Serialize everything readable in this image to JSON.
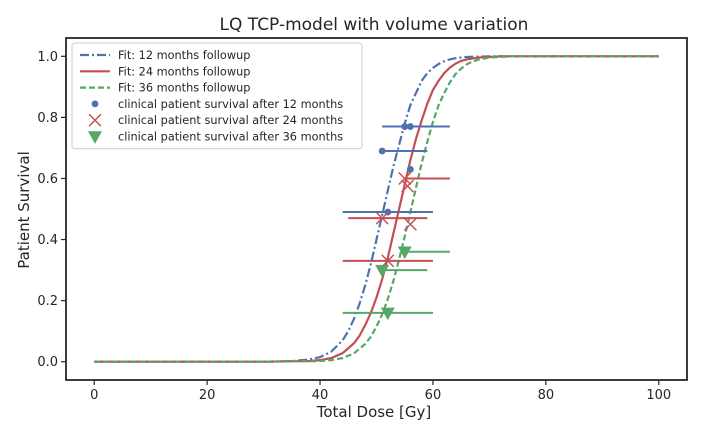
{
  "chart_data": {
    "type": "line",
    "title": "LQ TCP-model with volume variation",
    "xlabel": "Total Dose [Gy]",
    "ylabel": "Patient Survival",
    "xlim": [
      -5,
      105
    ],
    "ylim": [
      -0.06,
      1.06
    ],
    "xticks": [
      0,
      20,
      40,
      60,
      80,
      100
    ],
    "yticks": [
      0.0,
      0.2,
      0.4,
      0.6,
      0.8,
      1.0
    ],
    "xtick_labels": [
      "0",
      "20",
      "40",
      "60",
      "80",
      "100"
    ],
    "ytick_labels": [
      "0.0",
      "0.2",
      "0.4",
      "0.6",
      "0.8",
      "1.0"
    ],
    "legend_position": "top-left",
    "series": [
      {
        "name": "Fit: 12 months followup",
        "kind": "fit",
        "color": "#4c72b0",
        "linestyle": "dashdot",
        "x": [
          0,
          10,
          20,
          30,
          35,
          38,
          40,
          42,
          44,
          45,
          46,
          47,
          48,
          49,
          50,
          51,
          52,
          53,
          54,
          55,
          56,
          57,
          58,
          59,
          60,
          61,
          62,
          63,
          64,
          66,
          68,
          70,
          80,
          90,
          100
        ],
        "y": [
          0.0,
          0.0,
          0.0,
          0.0,
          0.002,
          0.007,
          0.015,
          0.033,
          0.07,
          0.1,
          0.14,
          0.19,
          0.25,
          0.32,
          0.4,
          0.48,
          0.56,
          0.64,
          0.71,
          0.78,
          0.84,
          0.88,
          0.92,
          0.945,
          0.962,
          0.975,
          0.984,
          0.99,
          0.994,
          0.998,
          0.999,
          1.0,
          1.0,
          1.0,
          1.0
        ]
      },
      {
        "name": "Fit: 24 months followup",
        "kind": "fit",
        "color": "#c44e52",
        "linestyle": "solid",
        "x": [
          0,
          10,
          20,
          30,
          38,
          40,
          42,
          44,
          46,
          47,
          48,
          49,
          50,
          51,
          52,
          53,
          54,
          55,
          56,
          57,
          58,
          59,
          60,
          61,
          62,
          63,
          64,
          65,
          66,
          68,
          70,
          72,
          80,
          90,
          100
        ],
        "y": [
          0.0,
          0.0,
          0.0,
          0.0,
          0.002,
          0.005,
          0.012,
          0.028,
          0.06,
          0.085,
          0.12,
          0.16,
          0.21,
          0.27,
          0.34,
          0.42,
          0.5,
          0.58,
          0.66,
          0.73,
          0.79,
          0.845,
          0.89,
          0.92,
          0.945,
          0.963,
          0.976,
          0.985,
          0.99,
          0.996,
          0.998,
          1.0,
          1.0,
          1.0,
          1.0
        ]
      },
      {
        "name": "Fit: 36 months followup",
        "kind": "fit",
        "color": "#55a868",
        "linestyle": "dashed",
        "x": [
          0,
          10,
          20,
          30,
          40,
          42,
          44,
          46,
          48,
          49,
          50,
          51,
          52,
          53,
          54,
          55,
          56,
          57,
          58,
          59,
          60,
          61,
          62,
          63,
          64,
          65,
          66,
          67,
          68,
          70,
          72,
          74,
          80,
          90,
          100
        ],
        "y": [
          0.0,
          0.0,
          0.0,
          0.0,
          0.002,
          0.005,
          0.012,
          0.027,
          0.058,
          0.082,
          0.115,
          0.155,
          0.205,
          0.265,
          0.335,
          0.41,
          0.49,
          0.57,
          0.65,
          0.72,
          0.785,
          0.84,
          0.88,
          0.915,
          0.942,
          0.96,
          0.974,
          0.983,
          0.989,
          0.996,
          0.998,
          1.0,
          1.0,
          1.0,
          1.0
        ]
      },
      {
        "name": "clinical patient survival after 12 months",
        "kind": "points",
        "marker": "circle",
        "color": "#4c72b0",
        "points": [
          {
            "x": 55.0,
            "y": 0.77,
            "xerr_lo": 51.0,
            "xerr_hi": 63.0
          },
          {
            "x": 56.0,
            "y": 0.77,
            "xerr_lo": 56.0,
            "xerr_hi": 56.0
          },
          {
            "x": 51.0,
            "y": 0.69,
            "xerr_lo": 51.0,
            "xerr_hi": 59.0
          },
          {
            "x": 56.0,
            "y": 0.63,
            "xerr_lo": 56.0,
            "xerr_hi": 56.0
          },
          {
            "x": 52.0,
            "y": 0.49,
            "xerr_lo": 44.0,
            "xerr_hi": 60.0
          }
        ]
      },
      {
        "name": "clinical patient survival after 24 months",
        "kind": "points",
        "marker": "x",
        "color": "#c44e52",
        "points": [
          {
            "x": 55.0,
            "y": 0.6,
            "xerr_lo": 55.0,
            "xerr_hi": 63.0
          },
          {
            "x": 55.5,
            "y": 0.575,
            "xerr_lo": 55.5,
            "xerr_hi": 55.5
          },
          {
            "x": 51.0,
            "y": 0.47,
            "xerr_lo": 45.0,
            "xerr_hi": 59.0
          },
          {
            "x": 56.0,
            "y": 0.45,
            "xerr_lo": 56.0,
            "xerr_hi": 56.0
          },
          {
            "x": 52.0,
            "y": 0.33,
            "xerr_lo": 44.0,
            "xerr_hi": 60.0
          }
        ]
      },
      {
        "name": "clinical patient survival after 36 months",
        "kind": "points",
        "marker": "triangle-down",
        "color": "#55a868",
        "points": [
          {
            "x": 55.0,
            "y": 0.36,
            "xerr_lo": 55.0,
            "xerr_hi": 63.0
          },
          {
            "x": 51.0,
            "y": 0.3,
            "xerr_lo": 51.0,
            "xerr_hi": 59.0
          },
          {
            "x": 52.0,
            "y": 0.16,
            "xerr_lo": 44.0,
            "xerr_hi": 60.0
          }
        ]
      }
    ]
  }
}
